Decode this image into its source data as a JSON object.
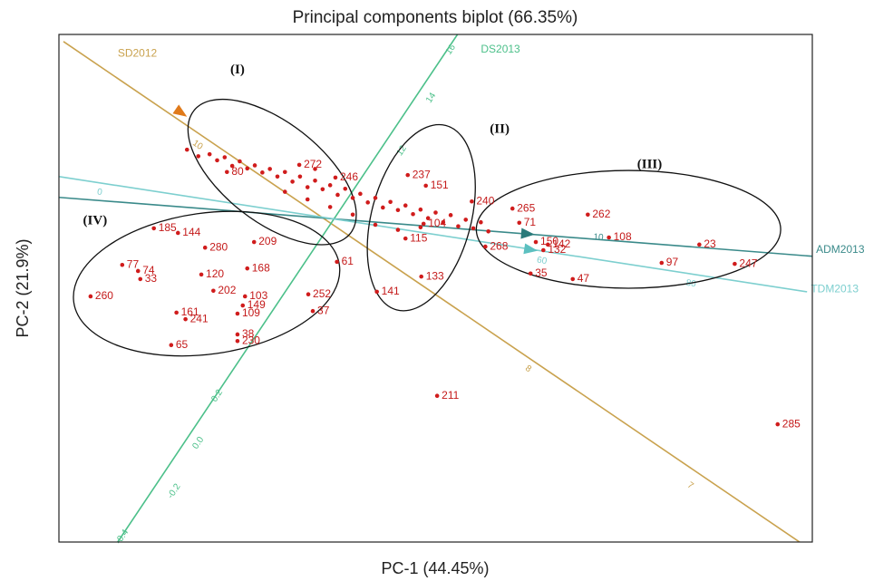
{
  "chart_data": {
    "type": "scatter",
    "title": "Principal components biplot (66.35%)",
    "x_label": "PC-1  (44.45%)",
    "y_label": "PC-2  (21.9%)",
    "xlim": [
      0,
      100
    ],
    "ylim": [
      0,
      100
    ],
    "point_color": "#d01c1c",
    "points": {
      "labels": [
        "285",
        "211",
        "247",
        "23",
        "97",
        "108",
        "262",
        "47",
        "35",
        "265",
        "71",
        "268",
        "150",
        "142",
        "132",
        "133",
        "141",
        "115",
        "104",
        "237",
        "151",
        "61",
        "252",
        "37",
        "209",
        "185",
        "144",
        "280",
        "77",
        "74",
        "33",
        "120",
        "260",
        "202",
        "103",
        "149",
        "109",
        "161",
        "241",
        "38",
        "230",
        "65",
        "168",
        "80",
        "272",
        "246",
        "240",
        null,
        null,
        null,
        null,
        null,
        null,
        null,
        null,
        null,
        null,
        null,
        null,
        null,
        null,
        null,
        null,
        null,
        null,
        null,
        null,
        null,
        null,
        null,
        null,
        null,
        null,
        null,
        null,
        null,
        null,
        null,
        null,
        null,
        null,
        null,
        null,
        null,
        null,
        null,
        null,
        null,
        null,
        null,
        null,
        null,
        null,
        null,
        null
      ],
      "x": [
        95.4,
        50.2,
        89.7,
        85.0,
        80.0,
        73.0,
        70.2,
        68.2,
        62.6,
        60.2,
        61.1,
        56.6,
        63.3,
        64.9,
        64.3,
        48.1,
        42.2,
        46.0,
        48.4,
        46.3,
        48.7,
        36.9,
        33.1,
        33.7,
        25.9,
        12.6,
        15.8,
        19.4,
        8.4,
        10.5,
        10.8,
        18.9,
        4.2,
        20.5,
        24.7,
        24.4,
        23.7,
        15.6,
        16.8,
        23.7,
        23.7,
        14.9,
        25.0,
        22.3,
        31.9,
        36.7,
        54.8,
        17,
        18.5,
        20,
        21,
        22,
        23,
        24,
        25,
        26,
        27,
        28,
        29,
        30,
        31,
        32,
        33,
        34,
        35,
        36,
        37,
        38,
        39,
        40,
        41,
        42,
        43,
        44,
        45,
        46,
        47,
        48,
        49,
        50,
        51,
        52,
        53,
        54,
        55,
        56,
        57,
        30,
        33,
        36,
        39,
        42,
        45,
        48,
        34
      ],
      "y": [
        23.2,
        28.8,
        54.8,
        58.6,
        55.0,
        60.0,
        64.5,
        51.8,
        52.9,
        65.7,
        62.9,
        58.2,
        59.1,
        58.6,
        57.5,
        52.3,
        49.3,
        59.8,
        62.7,
        72.3,
        70.2,
        55.2,
        48.8,
        45.5,
        59.1,
        61.8,
        60.9,
        58.0,
        54.6,
        53.4,
        51.8,
        52.7,
        48.4,
        49.5,
        48.4,
        46.6,
        45.0,
        45.2,
        43.9,
        40.9,
        39.6,
        38.8,
        53.9,
        72.9,
        74.3,
        71.8,
        67.1,
        77.3,
        76.0,
        76.4,
        75.2,
        75.8,
        74.1,
        75.0,
        73.6,
        74.2,
        72.8,
        73.5,
        72.0,
        72.9,
        71.0,
        72.0,
        69.9,
        71.2,
        69.5,
        70.3,
        68.4,
        69.6,
        67.8,
        68.6,
        66.9,
        67.8,
        65.9,
        67.0,
        65.4,
        66.3,
        64.6,
        65.5,
        63.8,
        64.9,
        63.0,
        64.4,
        62.2,
        63.5,
        61.8,
        63.0,
        61.2,
        69.0,
        67.5,
        66.0,
        64.5,
        62.5,
        61.5,
        62.0,
        73.5
      ]
    },
    "vectors": [
      {
        "name": "SD2012",
        "color": "#c9a24e",
        "from": [
          0.6,
          98.6
        ],
        "to": [
          98.7,
          -0.4
        ],
        "name_at": [
          7.8,
          96.2
        ],
        "arrow_at": [
          16.2,
          84.6
        ],
        "arrow_color": "#e07a1a",
        "ticks": [
          10,
          8,
          7
        ],
        "tick_at": [
          [
            18.4,
            78.2
          ],
          [
            62.3,
            34.1
          ],
          [
            83.8,
            11.1
          ]
        ]
      },
      {
        "name": "DS2013",
        "color": "#4cc08a",
        "from": [
          7.8,
          0
        ],
        "to": [
          52.9,
          100
        ],
        "name_at": [
          56.0,
          97.0
        ],
        "arrow_at": null,
        "arrow_color": null,
        "ticks": [
          16,
          14,
          12,
          0.2,
          {
            "value": 0,
            "label": "0.0"
          },
          -0.2,
          -0.4
        ],
        "tick_at": [
          [
            52.0,
            97.0
          ],
          [
            49.4,
            87.5
          ],
          [
            45.5,
            77.1
          ],
          [
            21.0,
            28.8
          ],
          [
            18.5,
            19.5
          ],
          [
            15.3,
            10.0
          ],
          [
            8.4,
            1.0
          ]
        ]
      },
      {
        "name": "ADM2013",
        "color": "#3a8a8a",
        "from": [
          0,
          67.9
        ],
        "to": [
          100,
          56.3
        ],
        "name_at": [
          100.5,
          57.5
        ],
        "arrow_at": [
          62.2,
          60.7
        ],
        "arrow_color": "#2a7a7a",
        "ticks": [
          10
        ],
        "tick_at": [
          [
            71.6,
            60.0
          ]
        ]
      },
      {
        "name": "TDM2013",
        "color": "#7dcfcf",
        "from": [
          0,
          72.0
        ],
        "to": [
          99.3,
          49.3
        ],
        "name_at": [
          99.8,
          49.8
        ],
        "arrow_at": [
          62.6,
          57.6
        ],
        "arrow_color": "#5cc0c0",
        "ticks": [
          0,
          60,
          80
        ],
        "tick_at": [
          [
            5.4,
            68.9
          ],
          [
            64.1,
            55.4
          ],
          [
            83.9,
            50.9
          ]
        ]
      }
    ],
    "groups": [
      {
        "label": "(I)",
        "cx": 28.3,
        "cy": 72.9,
        "rx": 13.2,
        "ry": 9.8,
        "angle": 38,
        "label_at": [
          23.7,
          92.9
        ]
      },
      {
        "label": "(II)",
        "cx": 48.1,
        "cy": 63.9,
        "rx": 6.6,
        "ry": 18.8,
        "angle": 15,
        "label_at": [
          58.5,
          81.2
        ]
      },
      {
        "label": "(III)",
        "cx": 75.6,
        "cy": 61.6,
        "rx": 20.2,
        "ry": 11.6,
        "angle": 0,
        "label_at": [
          78.4,
          74.3
        ]
      },
      {
        "label": "(IV)",
        "cx": 19.6,
        "cy": 50.9,
        "rx": 17.8,
        "ry": 13.9,
        "angle": -8,
        "label_at": [
          4.8,
          63.2
        ]
      }
    ]
  }
}
